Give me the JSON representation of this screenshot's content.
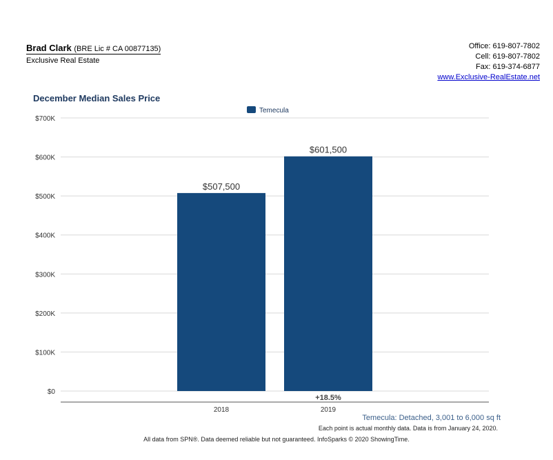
{
  "agent": {
    "name": "Brad Clark",
    "license": "(BRE Lic # CA 00877135)",
    "company": "Exclusive Real Estate"
  },
  "contact": {
    "office": "Office: 619-807-7802",
    "cell": "Cell: 619-807-7802",
    "fax": "Fax: 619-374-6877",
    "website": "www.Exclusive-RealEstate.net"
  },
  "colors": {
    "bar": "#15497c",
    "title": "#1f3a60",
    "grid": "#d8d8d8",
    "axis": "#555555"
  },
  "chart_data": {
    "type": "bar",
    "title": "December Median Sales Price",
    "categories": [
      "2018",
      "2019"
    ],
    "series": [
      {
        "name": "Temecula",
        "values": [
          507500,
          601500
        ],
        "labels": [
          "$507,500",
          "$601,500"
        ]
      }
    ],
    "ylim": [
      0,
      700000
    ],
    "yticks": [
      0,
      100000,
      200000,
      300000,
      400000,
      500000,
      600000,
      700000
    ],
    "ytick_labels": [
      "$0",
      "$100K",
      "$200K",
      "$300K",
      "$400K",
      "$500K",
      "$600K",
      "$700K"
    ],
    "change_label": "+18.5%",
    "grid": true,
    "legend": "top-center"
  },
  "footer": {
    "series_desc": "Temecula: Detached, 3,001 to 6,000 sq ft",
    "note": "Each point is actual monthly data. Data is from January 24, 2020.",
    "disclaimer": "All data from SPN®. Data deemed reliable but not guaranteed. InfoSparks © 2020 ShowingTime."
  }
}
